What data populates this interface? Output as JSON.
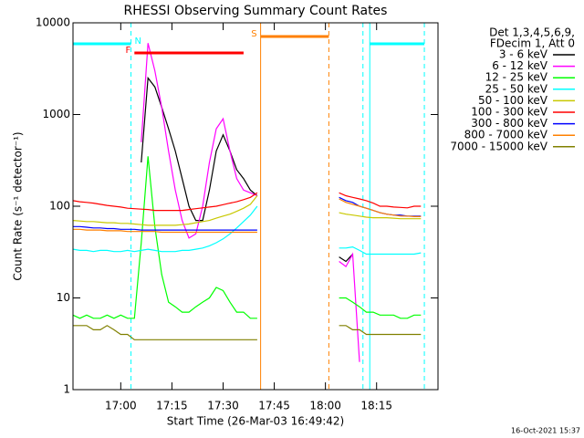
{
  "chart_data": {
    "type": "line",
    "title": "RHESSI Observing Summary Count Rates",
    "x_label": "Start Time (26-Mar-03 16:49:42)",
    "y_label": "Count Rate (s⁻¹ detector⁻¹)",
    "footer": "16-Oct-2021 15:37",
    "legend_header": [
      "Det 1,3,4,5,6,9,",
      "FDecim 1, Att 0"
    ],
    "legend": "right",
    "log_y": true,
    "xlim": [
      "16:46",
      "18:33"
    ],
    "xticks": [
      "17:00",
      "17:15",
      "17:30",
      "17:45",
      "18:00",
      "18:15"
    ],
    "ylim": [
      1,
      10000
    ],
    "yticks": [
      1,
      10,
      100,
      1000,
      10000
    ],
    "x": [
      "16:46",
      "16:48",
      "16:50",
      "16:52",
      "16:54",
      "16:56",
      "16:58",
      "17:00",
      "17:02",
      "17:04",
      "17:06",
      "17:08",
      "17:10",
      "17:12",
      "17:14",
      "17:16",
      "17:18",
      "17:20",
      "17:22",
      "17:24",
      "17:26",
      "17:28",
      "17:30",
      "17:32",
      "17:34",
      "17:36",
      "17:38",
      "17:40",
      "17:42",
      "17:44",
      "17:46",
      "17:48",
      "17:50",
      "17:52",
      "17:54",
      "17:56",
      "17:58",
      "18:00",
      "18:02",
      "18:04",
      "18:06",
      "18:08",
      "18:10",
      "18:12",
      "18:14",
      "18:16",
      "18:18",
      "18:20",
      "18:22",
      "18:24",
      "18:26",
      "18:28"
    ],
    "series": [
      {
        "name": "3 - 6 keV",
        "color": "#000000",
        "values": [
          null,
          null,
          null,
          null,
          null,
          null,
          null,
          null,
          null,
          null,
          300,
          2500,
          2000,
          1200,
          700,
          400,
          200,
          100,
          70,
          70,
          150,
          400,
          600,
          400,
          250,
          200,
          150,
          130,
          null,
          null,
          null,
          null,
          null,
          null,
          null,
          null,
          null,
          null,
          null,
          28,
          25,
          30,
          null,
          null,
          null,
          null,
          null,
          null,
          null,
          null,
          null,
          null
        ]
      },
      {
        "name": "6 - 12 keV",
        "color": "#ff00ff",
        "values": [
          null,
          null,
          null,
          null,
          null,
          null,
          null,
          null,
          null,
          null,
          500,
          6000,
          3000,
          1200,
          400,
          150,
          70,
          45,
          50,
          100,
          300,
          700,
          900,
          400,
          200,
          150,
          140,
          130,
          null,
          null,
          null,
          null,
          null,
          null,
          null,
          null,
          null,
          null,
          null,
          25,
          22,
          30,
          2,
          null,
          null,
          null,
          null,
          null,
          null,
          null,
          null,
          null
        ]
      },
      {
        "name": "12 - 25 keV",
        "color": "#00ff00",
        "values": [
          6.5,
          6,
          6.5,
          6,
          6,
          6.5,
          6,
          6.5,
          6,
          6,
          40,
          350,
          60,
          18,
          9,
          8,
          7,
          7,
          8,
          9,
          10,
          13,
          12,
          9,
          7,
          7,
          6,
          6,
          null,
          null,
          null,
          null,
          null,
          null,
          null,
          null,
          null,
          null,
          null,
          10,
          10,
          9,
          8,
          7,
          7,
          6.5,
          6.5,
          6.5,
          6,
          6,
          6.5,
          6.5
        ]
      },
      {
        "name": "25 - 50 keV",
        "color": "#00ffff",
        "values": [
          34,
          33,
          33,
          32,
          33,
          33,
          32,
          32,
          33,
          32,
          33,
          34,
          33,
          32,
          32,
          32,
          33,
          33,
          34,
          35,
          37,
          40,
          44,
          50,
          58,
          68,
          80,
          100,
          null,
          null,
          null,
          null,
          null,
          null,
          null,
          null,
          null,
          null,
          null,
          35,
          35,
          36,
          33,
          30,
          30,
          30,
          30,
          30,
          30,
          30,
          30,
          31
        ]
      },
      {
        "name": "50 - 100 keV",
        "color": "#c8c800",
        "values": [
          70,
          69,
          68,
          68,
          67,
          66,
          66,
          65,
          65,
          64,
          63,
          62,
          62,
          62,
          62,
          62,
          63,
          64,
          66,
          68,
          70,
          74,
          78,
          82,
          88,
          95,
          105,
          130,
          null,
          null,
          null,
          null,
          null,
          null,
          null,
          null,
          null,
          null,
          null,
          85,
          82,
          80,
          78,
          76,
          75,
          75,
          75,
          74,
          73,
          73,
          73,
          73
        ]
      },
      {
        "name": "100 - 300 keV",
        "color": "#ff0000",
        "values": [
          115,
          112,
          110,
          108,
          105,
          102,
          100,
          98,
          95,
          94,
          93,
          92,
          90,
          90,
          90,
          90,
          90,
          92,
          94,
          96,
          98,
          100,
          104,
          108,
          112,
          118,
          125,
          140,
          null,
          null,
          null,
          null,
          null,
          null,
          null,
          null,
          null,
          null,
          null,
          140,
          130,
          125,
          120,
          115,
          108,
          100,
          100,
          98,
          97,
          96,
          100,
          100
        ]
      },
      {
        "name": "300 - 800 keV",
        "color": "#0000ff",
        "values": [
          60,
          60,
          59,
          58,
          58,
          57,
          57,
          56,
          56,
          56,
          55,
          55,
          55,
          55,
          55,
          55,
          55,
          55,
          55,
          55,
          55,
          55,
          55,
          55,
          55,
          55,
          55,
          55,
          null,
          null,
          null,
          null,
          null,
          null,
          null,
          null,
          null,
          null,
          null,
          125,
          115,
          110,
          100,
          95,
          90,
          85,
          82,
          80,
          80,
          78,
          78,
          78
        ]
      },
      {
        "name": "800 - 7000 keV",
        "color": "#ff8000",
        "values": [
          56,
          56,
          55,
          55,
          55,
          54,
          54,
          54,
          53,
          53,
          53,
          53,
          53,
          52,
          52,
          52,
          52,
          52,
          52,
          52,
          52,
          52,
          52,
          52,
          52,
          52,
          52,
          52,
          null,
          null,
          null,
          null,
          null,
          null,
          null,
          null,
          null,
          null,
          null,
          120,
          110,
          105,
          100,
          95,
          90,
          85,
          82,
          80,
          78,
          78,
          77,
          77
        ]
      },
      {
        "name": "7000 - 15000 keV",
        "color": "#808000",
        "values": [
          5,
          5,
          5,
          4.5,
          4.5,
          5,
          4.5,
          4,
          4,
          3.5,
          3.5,
          3.5,
          3.5,
          3.5,
          3.5,
          3.5,
          3.5,
          3.5,
          3.5,
          3.5,
          3.5,
          3.5,
          3.5,
          3.5,
          3.5,
          3.5,
          3.5,
          3.5,
          null,
          null,
          null,
          null,
          null,
          null,
          null,
          null,
          null,
          null,
          null,
          5,
          5,
          4.5,
          4.5,
          4,
          4,
          4,
          4,
          4,
          4,
          4,
          4,
          4
        ]
      }
    ],
    "markers": [
      {
        "x": "16:46",
        "color": "#00ffff",
        "dashed": false
      },
      {
        "x": "17:03",
        "color": "#00ffff",
        "dashed": true
      },
      {
        "x": "17:41",
        "color": "#ff8000",
        "dashed": false
      },
      {
        "x": "18:01",
        "color": "#ff8000",
        "dashed": true
      },
      {
        "x": "18:11",
        "color": "#00ffff",
        "dashed": true
      },
      {
        "x": "18:13",
        "color": "#00ffff",
        "dashed": false
      },
      {
        "x": "18:29",
        "color": "#00ffff",
        "dashed": true
      }
    ],
    "flags": [
      {
        "label": "N",
        "label_at": "end",
        "start": "16:46",
        "end": "17:03",
        "y": 5900,
        "color": "#00ffff"
      },
      {
        "start": "18:13",
        "end": "18:29",
        "y": 5900,
        "color": "#00ffff"
      },
      {
        "label": "F",
        "label_at": "start",
        "start": "17:04",
        "end": "17:36",
        "y": 4700,
        "color": "#ff0000"
      },
      {
        "label": "S",
        "label_at": "start",
        "start": "17:41",
        "end": "18:01",
        "y": 7100,
        "color": "#ff8000"
      }
    ]
  }
}
